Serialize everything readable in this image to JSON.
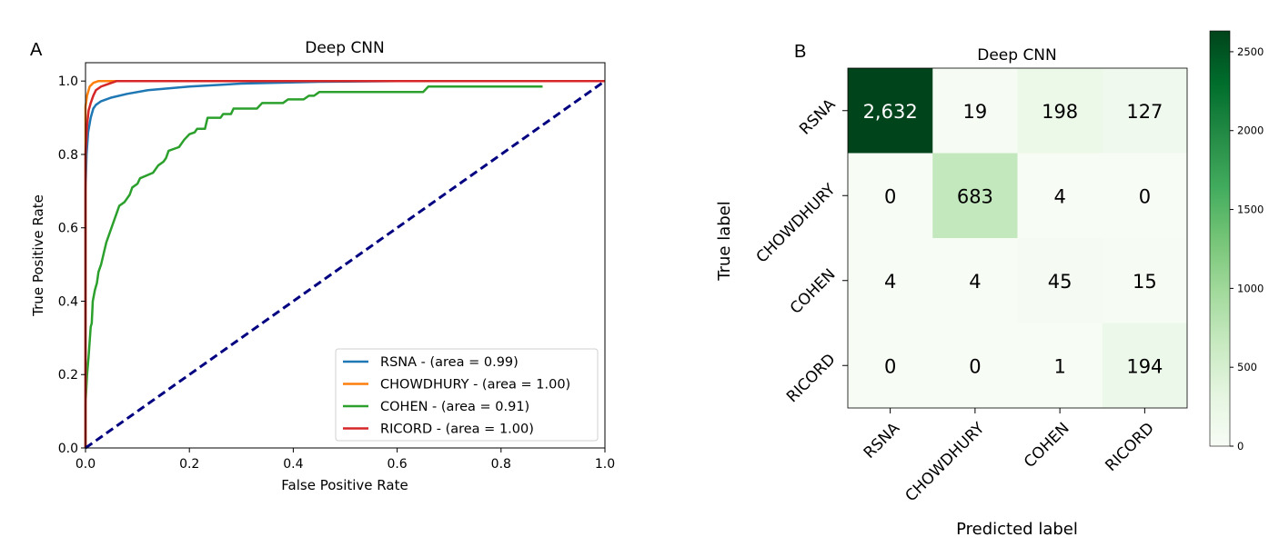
{
  "panels": {
    "a": "A",
    "b": "B"
  },
  "chart_data": [
    {
      "type": "line",
      "title": "Deep CNN",
      "xlabel": "False Positive Rate",
      "ylabel": "True Positive Rate",
      "xlim": [
        0,
        1
      ],
      "ylim": [
        0,
        1.05
      ],
      "xticks": [
        "0.0",
        "0.2",
        "0.4",
        "0.6",
        "0.8",
        "1.0"
      ],
      "yticks": [
        "0.0",
        "0.2",
        "0.4",
        "0.6",
        "0.8",
        "1.0"
      ],
      "legend_position": "lower-right",
      "series": [
        {
          "name": "RSNA - (area = 0.99)",
          "color": "#1f77b4",
          "points": [
            [
              0,
              0
            ],
            [
              0,
              0.7
            ],
            [
              0.002,
              0.8
            ],
            [
              0.005,
              0.86
            ],
            [
              0.01,
              0.9
            ],
            [
              0.015,
              0.925
            ],
            [
              0.02,
              0.935
            ],
            [
              0.03,
              0.945
            ],
            [
              0.05,
              0.955
            ],
            [
              0.08,
              0.965
            ],
            [
              0.12,
              0.975
            ],
            [
              0.2,
              0.985
            ],
            [
              0.3,
              0.993
            ],
            [
              0.45,
              0.998
            ],
            [
              0.6,
              1.0
            ],
            [
              1,
              1.0
            ]
          ]
        },
        {
          "name": "CHOWDHURY - (area = 1.00)",
          "color": "#ff7f0e",
          "points": [
            [
              0,
              0
            ],
            [
              0,
              0.93
            ],
            [
              0.003,
              0.96
            ],
            [
              0.008,
              0.985
            ],
            [
              0.015,
              0.995
            ],
            [
              0.025,
              1.0
            ],
            [
              1,
              1.0
            ]
          ]
        },
        {
          "name": "COHEN - (area = 0.91)",
          "color": "#2ca02c",
          "points": [
            [
              0,
              0
            ],
            [
              0,
              0.12
            ],
            [
              0.003,
              0.2
            ],
            [
              0.006,
              0.25
            ],
            [
              0.01,
              0.33
            ],
            [
              0.012,
              0.34
            ],
            [
              0.014,
              0.4
            ],
            [
              0.018,
              0.43
            ],
            [
              0.022,
              0.45
            ],
            [
              0.025,
              0.48
            ],
            [
              0.03,
              0.5
            ],
            [
              0.035,
              0.53
            ],
            [
              0.04,
              0.56
            ],
            [
              0.045,
              0.58
            ],
            [
              0.05,
              0.6
            ],
            [
              0.055,
              0.62
            ],
            [
              0.06,
              0.64
            ],
            [
              0.065,
              0.66
            ],
            [
              0.075,
              0.67
            ],
            [
              0.085,
              0.69
            ],
            [
              0.09,
              0.71
            ],
            [
              0.1,
              0.72
            ],
            [
              0.105,
              0.735
            ],
            [
              0.13,
              0.75
            ],
            [
              0.14,
              0.77
            ],
            [
              0.15,
              0.78
            ],
            [
              0.155,
              0.79
            ],
            [
              0.16,
              0.81
            ],
            [
              0.18,
              0.82
            ],
            [
              0.19,
              0.84
            ],
            [
              0.2,
              0.855
            ],
            [
              0.21,
              0.86
            ],
            [
              0.215,
              0.87
            ],
            [
              0.23,
              0.87
            ],
            [
              0.235,
              0.9
            ],
            [
              0.26,
              0.9
            ],
            [
              0.265,
              0.91
            ],
            [
              0.28,
              0.91
            ],
            [
              0.285,
              0.925
            ],
            [
              0.33,
              0.925
            ],
            [
              0.34,
              0.94
            ],
            [
              0.38,
              0.94
            ],
            [
              0.39,
              0.95
            ],
            [
              0.42,
              0.95
            ],
            [
              0.43,
              0.96
            ],
            [
              0.44,
              0.96
            ],
            [
              0.45,
              0.97
            ],
            [
              0.65,
              0.97
            ],
            [
              0.66,
              0.985
            ],
            [
              0.88,
              0.985
            ]
          ]
        },
        {
          "name": "RICORD - (area = 1.00)",
          "color": "#d62728",
          "points": [
            [
              0,
              0
            ],
            [
              0,
              0.8
            ],
            [
              0.003,
              0.88
            ],
            [
              0.006,
              0.92
            ],
            [
              0.01,
              0.94
            ],
            [
              0.015,
              0.96
            ],
            [
              0.02,
              0.975
            ],
            [
              0.03,
              0.985
            ],
            [
              0.04,
              0.99
            ],
            [
              0.05,
              0.995
            ],
            [
              0.06,
              1.0
            ],
            [
              1,
              1.0
            ]
          ]
        },
        {
          "name": "",
          "color": "#000080",
          "dashed": true,
          "points": [
            [
              0,
              0
            ],
            [
              1,
              1
            ]
          ]
        }
      ]
    },
    {
      "type": "heatmap",
      "title": "Deep CNN",
      "xlabel": "Predicted label",
      "ylabel": "True label",
      "x_categories": [
        "RSNA",
        "CHOWDHURY",
        "COHEN",
        "RICORD"
      ],
      "y_categories": [
        "RSNA",
        "CHOWDHURY",
        "COHEN",
        "RICORD"
      ],
      "values": [
        [
          2632,
          19,
          198,
          127
        ],
        [
          0,
          683,
          4,
          0
        ],
        [
          4,
          4,
          45,
          15
        ],
        [
          0,
          0,
          1,
          194
        ]
      ],
      "labels": [
        [
          "2,632",
          "19",
          "198",
          "127"
        ],
        [
          "0",
          "683",
          "4",
          "0"
        ],
        [
          "4",
          "4",
          "45",
          "15"
        ],
        [
          "0",
          "0",
          "1",
          "194"
        ]
      ],
      "colorbar": {
        "min": 0,
        "max": 2632,
        "ticks": [
          0,
          500,
          1000,
          1500,
          2000,
          2500
        ],
        "tick_labels": [
          "0",
          "500",
          "1000",
          "1500",
          "2000",
          "2500"
        ],
        "colormap": "Greens"
      }
    }
  ]
}
